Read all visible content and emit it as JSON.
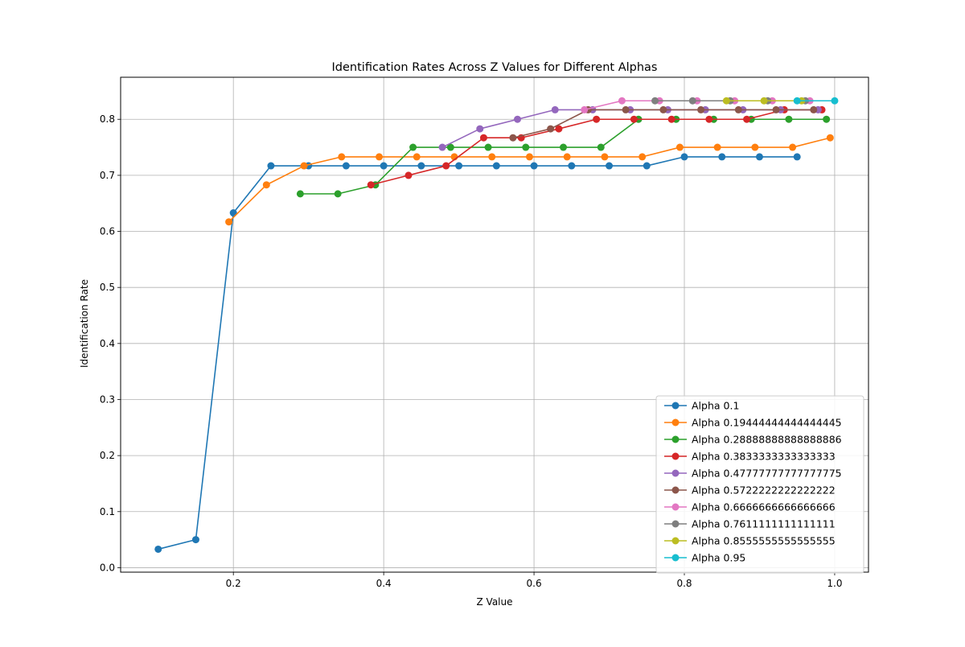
{
  "chart_data": {
    "type": "line",
    "title": "Identification Rates Across Z Values for Different Alphas",
    "xlabel": "Z Value",
    "ylabel": "Identification Rate",
    "xlim": [
      0.05,
      1.045
    ],
    "ylim": [
      -0.008,
      0.875
    ],
    "xticks": [
      0.2,
      0.4,
      0.6,
      0.8,
      1.0
    ],
    "xtick_labels": [
      "0.2",
      "0.4",
      "0.6",
      "0.8",
      "1.0"
    ],
    "yticks": [
      0.0,
      0.1,
      0.2,
      0.3,
      0.4,
      0.5,
      0.6,
      0.7,
      0.8
    ],
    "ytick_labels": [
      "0.0",
      "0.1",
      "0.2",
      "0.3",
      "0.4",
      "0.5",
      "0.6",
      "0.7",
      "0.8"
    ],
    "grid": true,
    "legend_position": "lower-right",
    "series": [
      {
        "name": "Alpha 0.1",
        "color": "#1f77b4",
        "x": [
          0.1,
          0.15,
          0.2,
          0.25,
          0.3,
          0.35,
          0.4,
          0.45,
          0.5,
          0.55,
          0.6,
          0.65,
          0.7,
          0.75,
          0.8,
          0.85,
          0.9,
          0.95
        ],
        "y": [
          0.033,
          0.05,
          0.633,
          0.717,
          0.717,
          0.717,
          0.717,
          0.717,
          0.717,
          0.717,
          0.717,
          0.717,
          0.717,
          0.717,
          0.733,
          0.733,
          0.733,
          0.733
        ]
      },
      {
        "name": "Alpha 0.19444444444444445",
        "color": "#ff7f0e",
        "x": [
          0.194,
          0.244,
          0.294,
          0.344,
          0.394,
          0.444,
          0.494,
          0.544,
          0.594,
          0.644,
          0.694,
          0.744,
          0.794,
          0.844,
          0.894,
          0.944,
          0.994
        ],
        "y": [
          0.617,
          0.683,
          0.717,
          0.733,
          0.733,
          0.733,
          0.733,
          0.733,
          0.733,
          0.733,
          0.733,
          0.733,
          0.75,
          0.75,
          0.75,
          0.75,
          0.767
        ]
      },
      {
        "name": "Alpha 0.28888888888888886",
        "color": "#2ca02c",
        "x": [
          0.289,
          0.339,
          0.389,
          0.439,
          0.489,
          0.539,
          0.589,
          0.639,
          0.689,
          0.739,
          0.789,
          0.839,
          0.889,
          0.939,
          0.989
        ],
        "y": [
          0.667,
          0.667,
          0.683,
          0.75,
          0.75,
          0.75,
          0.75,
          0.75,
          0.75,
          0.8,
          0.8,
          0.8,
          0.8,
          0.8,
          0.8
        ]
      },
      {
        "name": "Alpha 0.3833333333333333",
        "color": "#d62728",
        "x": [
          0.383,
          0.433,
          0.483,
          0.533,
          0.583,
          0.633,
          0.683,
          0.733,
          0.783,
          0.833,
          0.883,
          0.933,
          0.983
        ],
        "y": [
          0.683,
          0.7,
          0.717,
          0.767,
          0.767,
          0.783,
          0.8,
          0.8,
          0.8,
          0.8,
          0.8,
          0.817,
          0.817
        ]
      },
      {
        "name": "Alpha 0.47777777777777775",
        "color": "#9467bd",
        "x": [
          0.478,
          0.528,
          0.578,
          0.628,
          0.678,
          0.728,
          0.778,
          0.828,
          0.878,
          0.928,
          0.978
        ],
        "y": [
          0.75,
          0.783,
          0.8,
          0.817,
          0.817,
          0.817,
          0.817,
          0.817,
          0.817,
          0.817,
          0.817
        ]
      },
      {
        "name": "Alpha 0.5722222222222222",
        "color": "#8c564b",
        "x": [
          0.572,
          0.622,
          0.672,
          0.722,
          0.772,
          0.822,
          0.872,
          0.922,
          0.972
        ],
        "y": [
          0.767,
          0.783,
          0.817,
          0.817,
          0.817,
          0.817,
          0.817,
          0.817,
          0.817
        ]
      },
      {
        "name": "Alpha 0.6666666666666666",
        "color": "#e377c2",
        "x": [
          0.667,
          0.717,
          0.767,
          0.817,
          0.867,
          0.917,
          0.967
        ],
        "y": [
          0.817,
          0.833,
          0.833,
          0.833,
          0.833,
          0.833,
          0.833
        ]
      },
      {
        "name": "Alpha 0.7611111111111111",
        "color": "#7f7f7f",
        "x": [
          0.761,
          0.811,
          0.861,
          0.911,
          0.961
        ],
        "y": [
          0.833,
          0.833,
          0.833,
          0.833,
          0.833
        ]
      },
      {
        "name": "Alpha 0.8555555555555555",
        "color": "#bcbd22",
        "x": [
          0.856,
          0.906,
          0.956
        ],
        "y": [
          0.833,
          0.833,
          0.833
        ]
      },
      {
        "name": "Alpha 0.95",
        "color": "#17becf",
        "x": [
          0.95,
          1.0
        ],
        "y": [
          0.833,
          0.833
        ]
      }
    ]
  }
}
